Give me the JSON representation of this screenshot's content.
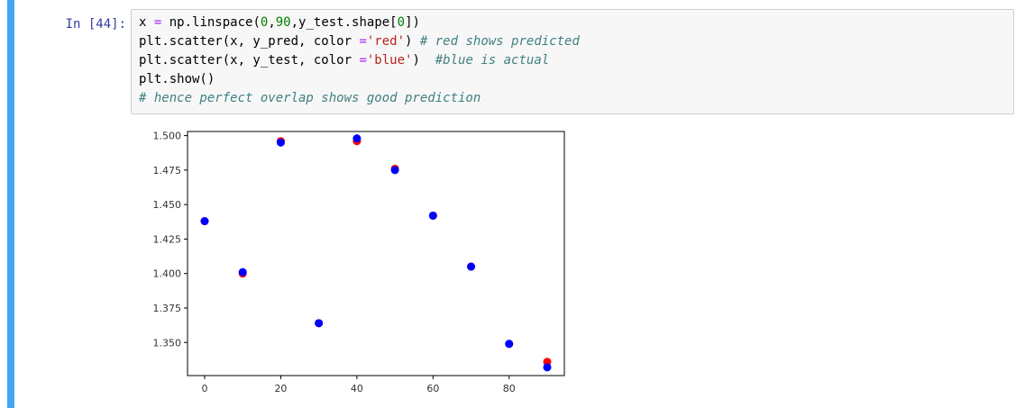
{
  "cell": {
    "prompt": "In [44]:",
    "code_lines": [
      [
        {
          "t": "x ",
          "c": "pun"
        },
        {
          "t": "=",
          "c": "eq"
        },
        {
          "t": " np.linspace(",
          "c": "pun"
        },
        {
          "t": "0",
          "c": "num"
        },
        {
          "t": ",",
          "c": "pun"
        },
        {
          "t": "90",
          "c": "num"
        },
        {
          "t": ",y_test.shape[",
          "c": "pun"
        },
        {
          "t": "0",
          "c": "num"
        },
        {
          "t": "])",
          "c": "pun"
        }
      ],
      [
        {
          "t": "plt.scatter(x, y_pred, color ",
          "c": "pun"
        },
        {
          "t": "=",
          "c": "eq"
        },
        {
          "t": "'red'",
          "c": "str"
        },
        {
          "t": ") ",
          "c": "pun"
        },
        {
          "t": "# red shows predicted",
          "c": "com"
        }
      ],
      [
        {
          "t": "plt.scatter(x, y_test, color ",
          "c": "pun"
        },
        {
          "t": "=",
          "c": "eq"
        },
        {
          "t": "'blue'",
          "c": "str"
        },
        {
          "t": ")  ",
          "c": "pun"
        },
        {
          "t": "#blue is actual",
          "c": "com"
        }
      ],
      [
        {
          "t": "plt.show()",
          "c": "pun"
        }
      ],
      [
        {
          "t": "# hence perfect overlap shows good prediction",
          "c": "com"
        }
      ]
    ]
  },
  "colors": {
    "accent_bar": "#42a5f5",
    "prompt": "#303f9f",
    "predicted": "#ff0000",
    "actual": "#0000ff"
  },
  "chart_data": {
    "type": "scatter",
    "title": "",
    "xlabel": "",
    "ylabel": "",
    "xlim": [
      -4.5,
      94.5
    ],
    "ylim": [
      1.326,
      1.503
    ],
    "xticks": [
      0,
      20,
      40,
      60,
      80
    ],
    "yticks": [
      1.35,
      1.375,
      1.4,
      1.425,
      1.45,
      1.475,
      1.5
    ],
    "ytick_labels": [
      "1.350",
      "1.375",
      "1.400",
      "1.425",
      "1.450",
      "1.475",
      "1.500"
    ],
    "grid": false,
    "series": [
      {
        "color": "red",
        "x": [
          0,
          10,
          20,
          30,
          40,
          50,
          60,
          70,
          80,
          90
        ],
        "y": [
          1.438,
          1.4,
          1.496,
          1.364,
          1.496,
          1.476,
          1.442,
          1.405,
          1.349,
          1.336
        ]
      },
      {
        "color": "blue",
        "x": [
          0,
          10,
          20,
          30,
          40,
          50,
          60,
          70,
          80,
          90
        ],
        "y": [
          1.438,
          1.401,
          1.495,
          1.364,
          1.498,
          1.475,
          1.442,
          1.405,
          1.349,
          1.332
        ]
      }
    ]
  }
}
